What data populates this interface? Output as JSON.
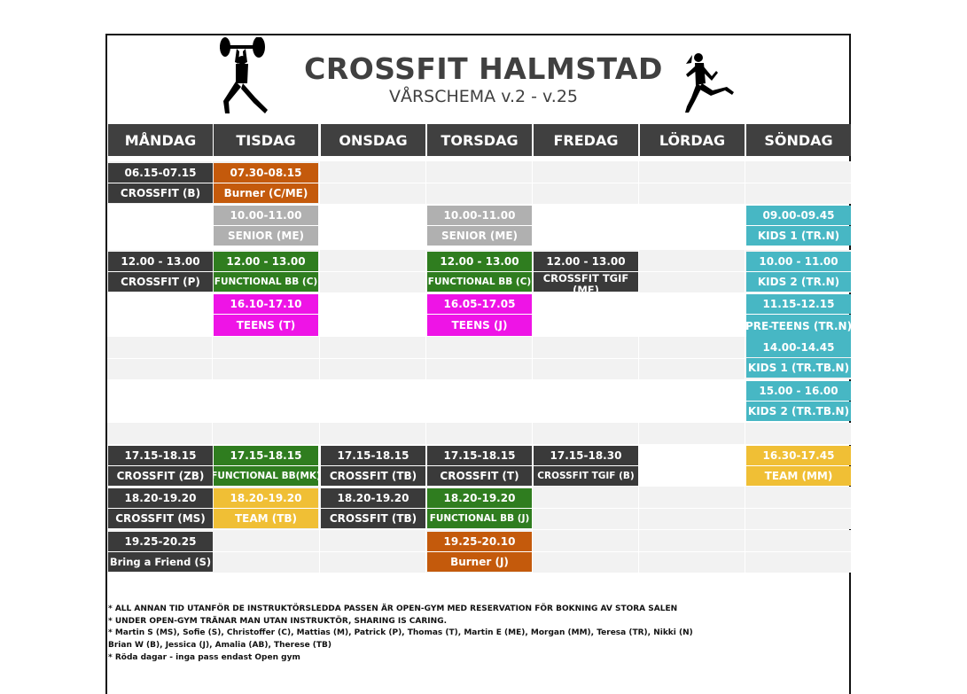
{
  "title": "CROSSFIT HALMSTAD",
  "subtitle": "VÅRSCHEMA v.2 - v.25",
  "icons": {
    "left": "weightlifter-icon",
    "right": "runner-icon"
  },
  "days": [
    "MÅNDAG",
    "TISDAG",
    "ONSDAG",
    "TORSDAG",
    "FREDAG",
    "LÖRDAG",
    "SÖNDAG"
  ],
  "colors": {
    "header": "#404040",
    "dark": "#3a3a3a",
    "green": "#2f7d1f",
    "orange": "#c45a0c",
    "grey": "#b0b0b0",
    "magenta": "#ee14e6",
    "teal": "#47b7c4",
    "yellow": "#f0bf35"
  },
  "schedule": {
    "mon": [
      {
        "time": "06.15-07.15",
        "class": "CROSSFIT (B)"
      },
      {
        "time": "12.00 - 13.00",
        "class": "CROSSFIT (P)"
      },
      {
        "time": "17.15-18.15",
        "class": "CROSSFIT (ZB)"
      },
      {
        "time": "18.20-19.20",
        "class": "CROSSFIT (MS)"
      },
      {
        "time": "19.25-20.25",
        "class": "Bring a Friend (S)"
      }
    ],
    "tue": [
      {
        "time": "07.30-08.15",
        "class": "Burner (C/ME)"
      },
      {
        "time": "10.00-11.00",
        "class": "SENIOR (ME)"
      },
      {
        "time": "12.00 - 13.00",
        "class": "FUNCTIONAL BB (C)"
      },
      {
        "time": "16.10-17.10",
        "class": "TEENS (T)"
      },
      {
        "time": "17.15-18.15",
        "class": "FUNCTIONAL BB(MK)"
      },
      {
        "time": "18.20-19.20",
        "class": "TEAM (TB)"
      }
    ],
    "wed": [
      {
        "time": "17.15-18.15",
        "class": "CROSSFIT (TB)"
      },
      {
        "time": "18.20-19.20",
        "class": "CROSSFIT (TB)"
      }
    ],
    "thu": [
      {
        "time": "10.00-11.00",
        "class": "SENIOR (ME)"
      },
      {
        "time": "12.00 - 13.00",
        "class": "FUNCTIONAL BB (C)"
      },
      {
        "time": "16.05-17.05",
        "class": "TEENS (J)"
      },
      {
        "time": "17.15-18.15",
        "class": "CROSSFIT (T)"
      },
      {
        "time": "18.20-19.20",
        "class": "FUNCTIONAL BB (J)"
      },
      {
        "time": "19.25-20.10",
        "class": "Burner (J)"
      }
    ],
    "fri": [
      {
        "time": "12.00 - 13.00",
        "class": "CROSSFIT TGIF (ME)"
      },
      {
        "time": "17.15-18.30",
        "class": "CROSSFIT TGIF (B)"
      }
    ],
    "sun": [
      {
        "time": "09.00-09.45",
        "class": "KIDS 1 (TR.N)"
      },
      {
        "time": "10.00 - 11.00",
        "class": "KIDS 2 (TR.N)"
      },
      {
        "time": "11.15-12.15",
        "class": "PRE-TEENS (TR.N)"
      },
      {
        "time": "14.00-14.45",
        "class": "KIDS 1 (TR.TB.N)"
      },
      {
        "time": "15.00 - 16.00",
        "class": "KIDS 2 (TR.TB.N)"
      },
      {
        "time": "16.30-17.45",
        "class": "TEAM (MM)"
      }
    ]
  },
  "notes": [
    "* ALL ANNAN TID UTANFÖR DE INSTRUKTÖRSLEDDA PASSEN ÄR OPEN-GYM MED RESERVATION FÖR BOKNING AV STORA SALEN",
    "* UNDER OPEN-GYM TRÄNAR MAN UTAN INSTRUKTÖR, SHARING IS CARING.",
    "* Martin S (MS), Sofie (S), Christoffer (C), Mattias (M), Patrick (P), Thomas (T), Martin E (ME), Morgan (MM), Teresa (TR), Nikki (N)",
    "Brian W (B), Jessica (J), Amalia (AB), Therese (TB)",
    "* Röda dagar - inga pass endast Open gym"
  ]
}
